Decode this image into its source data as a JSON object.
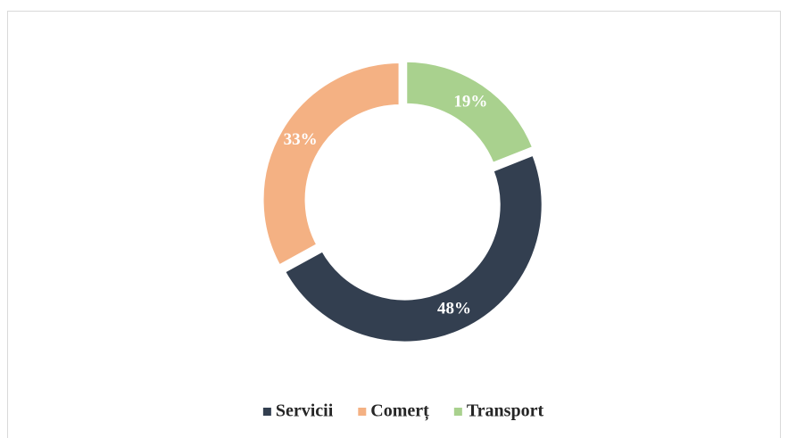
{
  "chart_data": {
    "type": "donut",
    "categories": [
      "Servicii",
      "Comerț",
      "Transport"
    ],
    "values": [
      48,
      33,
      19
    ],
    "value_labels": [
      "48%",
      "33%",
      "19%"
    ],
    "colors": [
      "#333f50",
      "#f4b183",
      "#a9d18e"
    ],
    "legend": "bottom"
  }
}
